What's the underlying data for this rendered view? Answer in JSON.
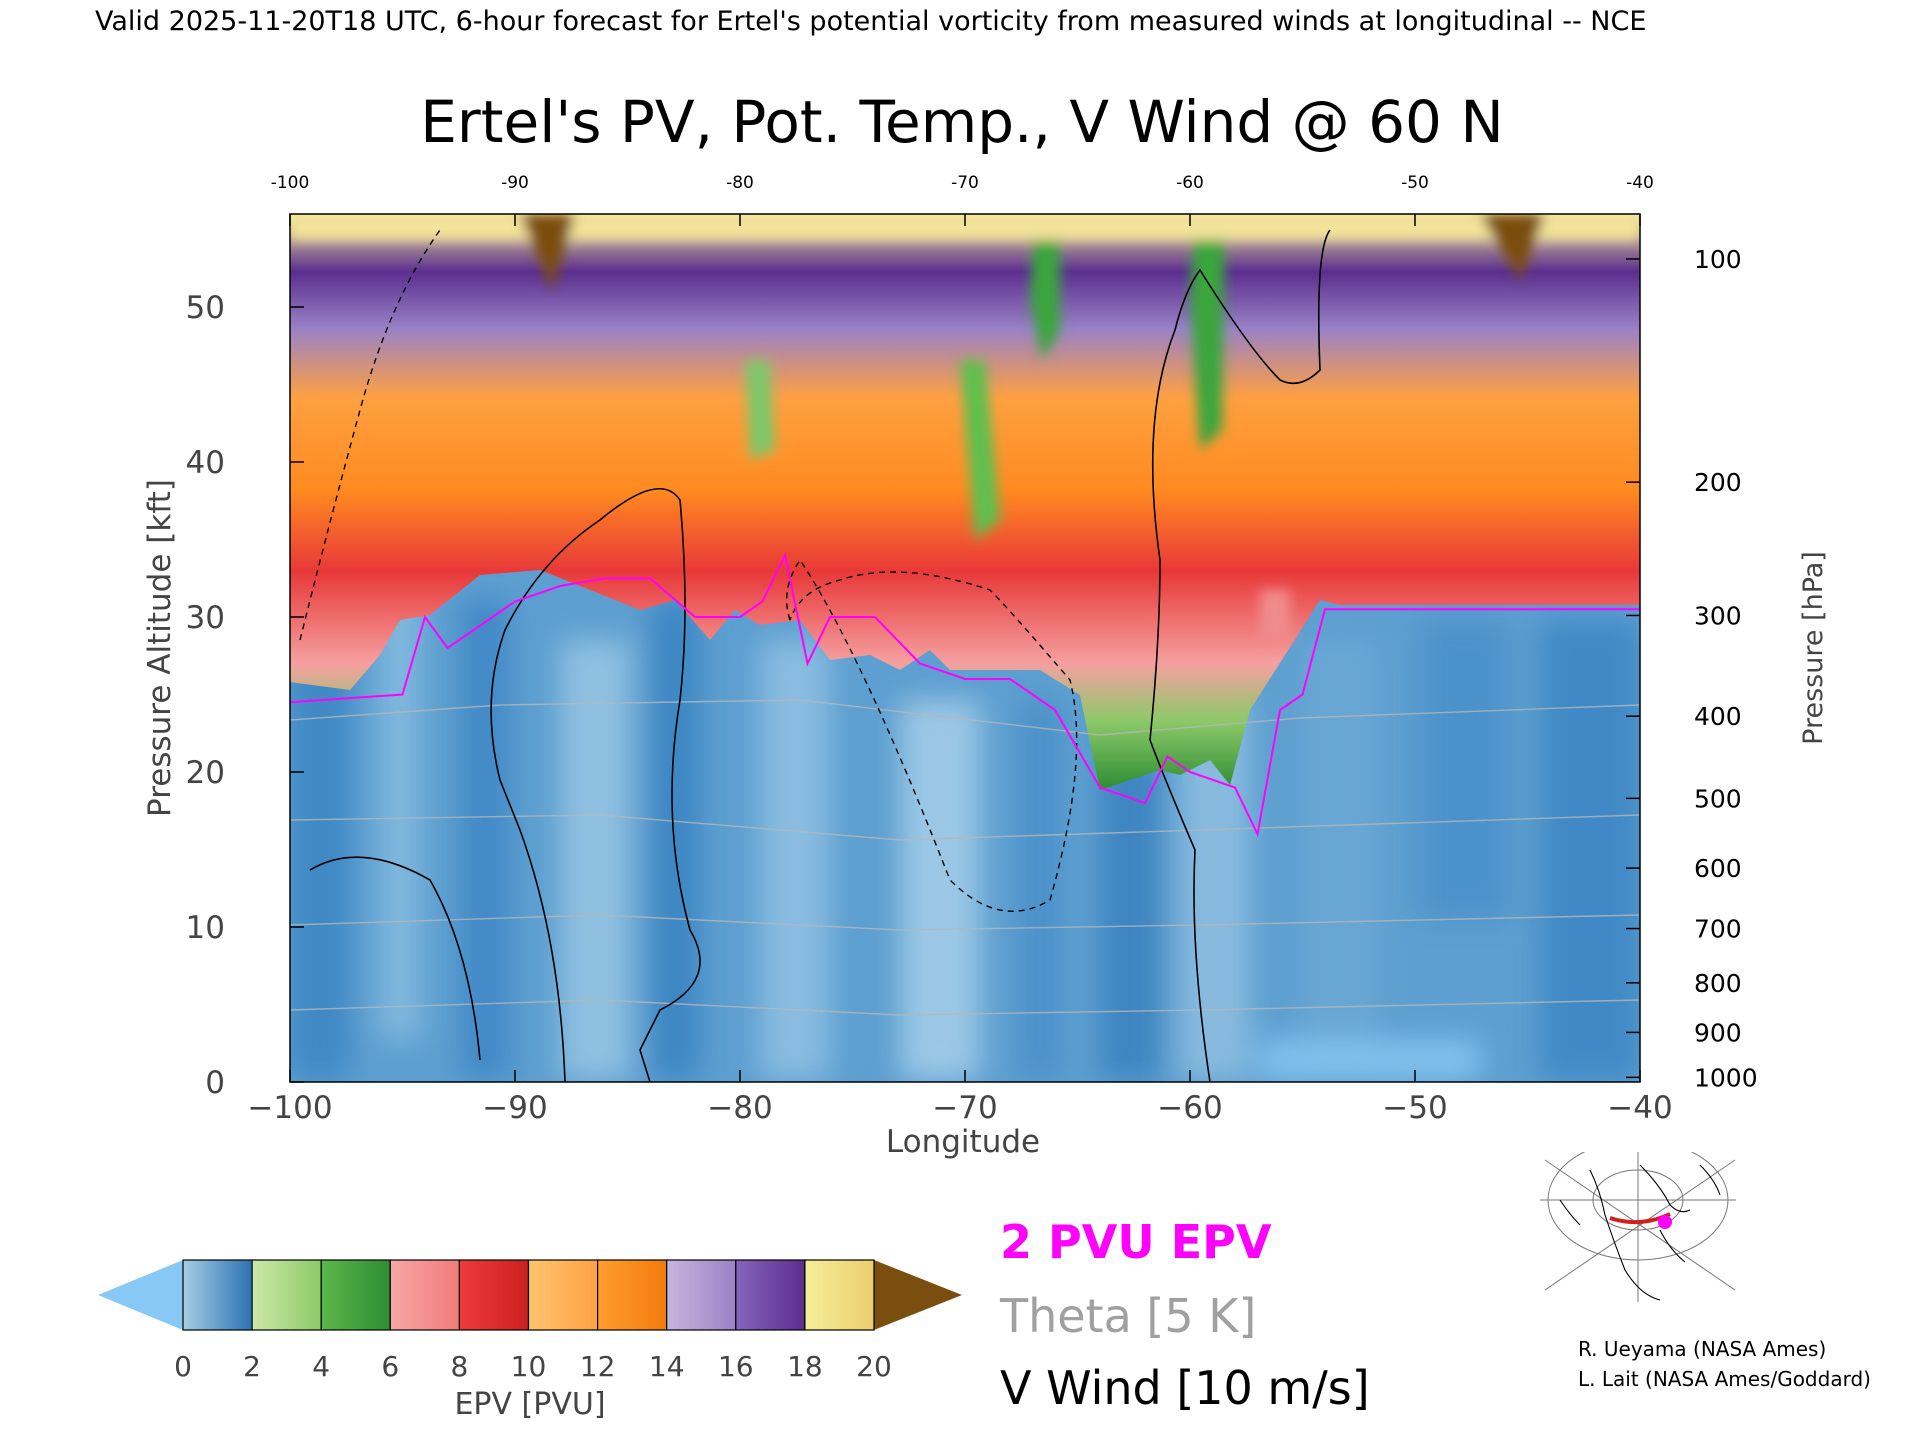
{
  "header": {
    "valid_line": "Valid 2025-11-20T18 UTC, 6-hour forecast for Ertel's potential vorticity from measured winds at longitudinal -- NCE"
  },
  "chart_data": {
    "type": "heatmap",
    "title": "Ertel's PV, Pot. Temp., V Wind @ 60 N",
    "xlabel": "Longitude",
    "ylabel_left": "Pressure Altitude [kft]",
    "ylabel_right": "Pressure [hPa]",
    "xlim": [
      -100,
      -40
    ],
    "ylim": [
      0,
      56
    ],
    "x_ticks": [
      -100,
      -90,
      -80,
      -70,
      -60,
      -50,
      -40
    ],
    "x_tick_labels": [
      "−100",
      "−90",
      "−80",
      "−70",
      "−60",
      "−50",
      "−40"
    ],
    "top_tick_labels": [
      "-100",
      "-90",
      "-80",
      "-70",
      "-60",
      "-50",
      "-40"
    ],
    "y_ticks_kft": [
      0,
      10,
      20,
      30,
      40,
      50
    ],
    "pressure_ticks": [
      {
        "label": "100",
        "kft": 53.1
      },
      {
        "label": "200",
        "kft": 38.7
      },
      {
        "label": "300",
        "kft": 30.1
      },
      {
        "label": "400",
        "kft": 23.6
      },
      {
        "label": "500",
        "kft": 18.3
      },
      {
        "label": "600",
        "kft": 13.8
      },
      {
        "label": "700",
        "kft": 9.9
      },
      {
        "label": "800",
        "kft": 6.4
      },
      {
        "label": "900",
        "kft": 3.2
      },
      {
        "label": "1000",
        "kft": 0.3
      }
    ],
    "pv_2pvu_tropopause": {
      "x": [
        -100,
        -95,
        -94,
        -93,
        -92,
        -91,
        -90,
        -88,
        -86,
        -84,
        -82,
        -80,
        -79,
        -78,
        -77,
        -76,
        -74,
        -72,
        -70,
        -68,
        -66,
        -64,
        -62,
        -61,
        -60,
        -58,
        -57,
        -56,
        -55,
        -54,
        -50,
        -45,
        -40
      ],
      "kft": [
        24.5,
        25,
        30,
        28,
        29,
        30,
        31,
        32,
        32.5,
        32.5,
        30,
        30,
        31,
        34,
        27,
        30,
        30,
        27,
        26,
        26,
        24,
        19,
        18,
        21,
        20,
        19,
        16,
        24,
        25,
        30.5,
        30.5,
        30.5,
        30.5
      ]
    },
    "colorbar": {
      "label": "EPV [PVU]",
      "ticks": [
        "0",
        "2",
        "4",
        "6",
        "8",
        "10",
        "12",
        "14",
        "16",
        "18",
        "20"
      ],
      "under_color": "#87c8f4",
      "over_color": "#7a4e0e",
      "segments": [
        [
          "#a6cde3",
          "#2b72b2"
        ],
        [
          "#cde8a8",
          "#8cc968"
        ],
        [
          "#5cb84a",
          "#2e8c34"
        ],
        [
          "#f7a6a6",
          "#f27b7b"
        ],
        [
          "#ee3b3b",
          "#cc1f1f"
        ],
        [
          "#ffc46e",
          "#ffa146"
        ],
        [
          "#ff9d2e",
          "#f27b0e"
        ],
        [
          "#c7b6dc",
          "#9a82c6"
        ],
        [
          "#8664bc",
          "#5b2e8e"
        ],
        [
          "#f5ef9a",
          "#ecce6e"
        ]
      ]
    },
    "legend": {
      "pv_label": "2 PVU EPV",
      "theta_label": "Theta [5 K]",
      "wind_label": "V Wind [10 m/s]",
      "pv_color": "#ff00ff",
      "theta_color": "#a0a0a0",
      "wind_color": "#000000"
    }
  },
  "credits": {
    "line1": "R. Ueyama (NASA Ames)",
    "line2": "L. Lait (NASA Ames/Goddard)"
  }
}
